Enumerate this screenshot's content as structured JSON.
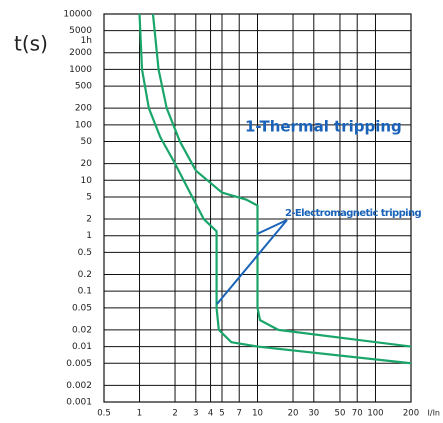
{
  "chart_data": {
    "type": "line",
    "y_label": "t(s)",
    "x_label": "I/In",
    "annotations": [
      "1-Thermal tripping",
      "2-Electromagnetic tripping"
    ],
    "xscale": "log",
    "yscale": "log",
    "grid": true,
    "xlim": [
      0.5,
      200
    ],
    "ylim": [
      0.001,
      10000
    ],
    "xticks": [
      0.5,
      1,
      2,
      3,
      4,
      5,
      7,
      10,
      20,
      30,
      50,
      70,
      100,
      200
    ],
    "yticks": [
      10000,
      5000,
      {
        "value": 3600,
        "label": "1h"
      },
      2000,
      1000,
      500,
      200,
      100,
      50,
      20,
      10,
      5,
      2,
      1,
      0.5,
      0.2,
      0.1,
      0.05,
      0.02,
      0.01,
      0.005,
      0.002,
      0.001
    ],
    "series": [
      {
        "color": "#1aa56b",
        "x": [
          1.0,
          1.05,
          1.2,
          1.5,
          2,
          2.8,
          3.5,
          4.5,
          4.5,
          4.7,
          6,
          10,
          200
        ],
        "values": [
          10000,
          1000,
          200,
          60,
          20,
          5,
          2,
          1.2,
          0.05,
          0.02,
          0.012,
          0.01,
          0.005
        ]
      },
      {
        "color": "#1aa56b",
        "x": [
          1.3,
          1.45,
          1.7,
          2.2,
          3,
          5,
          8,
          10,
          10,
          10.5,
          15,
          200
        ],
        "values": [
          10000,
          1000,
          200,
          50,
          15,
          6,
          4.5,
          3.5,
          0.05,
          0.03,
          0.02,
          0.01
        ]
      }
    ]
  }
}
